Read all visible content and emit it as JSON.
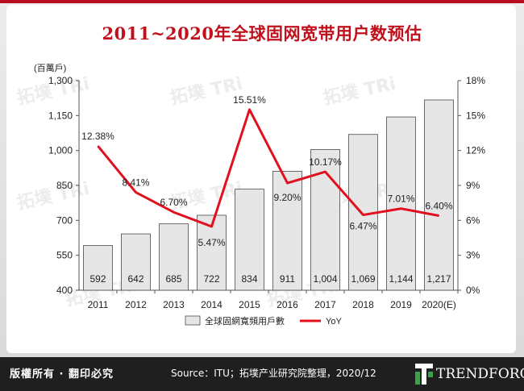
{
  "title": "2011~2020年全球固网宽带用户数预估",
  "watermark": "拓墣 TRi",
  "footer": {
    "copyright": "版權所有 · 翻印必究",
    "source": "Source：ITU；拓墣产业研究院整理，2020/12",
    "logo_text": "TRENDFORCE"
  },
  "colors": {
    "accent": "#b80f1e",
    "bar_fill": "#e6e6e6",
    "bar_stroke": "#4a4a4a",
    "line": "#e0101e"
  },
  "chart_data": {
    "type": "bar",
    "categories": [
      "2011",
      "2012",
      "2013",
      "2014",
      "2015",
      "2016",
      "2017",
      "2018",
      "2019",
      "2020(E)"
    ],
    "series": [
      {
        "name": "全球固網寬頻用戶數",
        "type": "bar",
        "axis": "left",
        "values": [
          592,
          642,
          685,
          722,
          834,
          911,
          1004,
          1069,
          1144,
          1217
        ],
        "labels": [
          "592",
          "642",
          "685",
          "722",
          "834",
          "911",
          "1,004",
          "1,069",
          "1,144",
          "1,217"
        ]
      },
      {
        "name": "YoY",
        "type": "line",
        "axis": "right",
        "values": [
          12.38,
          8.41,
          6.7,
          5.47,
          15.51,
          9.2,
          10.17,
          6.47,
          7.01,
          6.4
        ],
        "labels": [
          "12.38%",
          "8.41%",
          "6.70%",
          "5.47%",
          "15.51%",
          "9.20%",
          "10.17%",
          "6.47%",
          "7.01%",
          "6.40%"
        ]
      }
    ],
    "left_axis": {
      "unit": "(百萬戶)",
      "ylim": [
        400,
        1300
      ],
      "ticks": [
        400,
        550,
        700,
        850,
        1000,
        1150,
        1300
      ],
      "tick_labels": [
        "400",
        "550",
        "700",
        "850",
        "1,000",
        "1,150",
        "1,300"
      ]
    },
    "right_axis": {
      "ylim": [
        0,
        18
      ],
      "ticks": [
        0,
        3,
        6,
        9,
        12,
        15,
        18
      ],
      "tick_labels": [
        "0%",
        "3%",
        "6%",
        "9%",
        "12%",
        "15%",
        "18%"
      ]
    },
    "legend": {
      "placement": "bottom",
      "items": [
        "全球固網寬頻用戶數",
        "YoY"
      ]
    }
  }
}
